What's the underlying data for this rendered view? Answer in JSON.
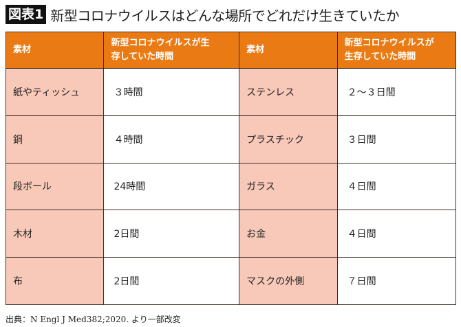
{
  "title": {
    "badge": "図表1",
    "text": "新型コロナウイルスはどんな場所でどれだけ生きていたか"
  },
  "table": {
    "headers": [
      "素材",
      "新型コロナウイルスが生存していた時間",
      "素材",
      "新型コロナウイルスが生存していた時間"
    ],
    "rows": [
      [
        "紙やティッシュ",
        "３時間",
        "ステンレス",
        "２〜３日間"
      ],
      [
        "銅",
        "４時間",
        "プラスチック",
        "３日間"
      ],
      [
        "段ボール",
        "24時間",
        "ガラス",
        "４日間"
      ],
      [
        "木材",
        "2日間",
        "お金",
        "４日間"
      ],
      [
        "布",
        "2日間",
        "マスクの外側",
        "７日間"
      ]
    ]
  },
  "source": "出典：N Engl J Med382;2020. より一部改変",
  "colors": {
    "header": "#ea7b14",
    "material_cell": "#f8c9b9",
    "border": "#3b2b22"
  }
}
